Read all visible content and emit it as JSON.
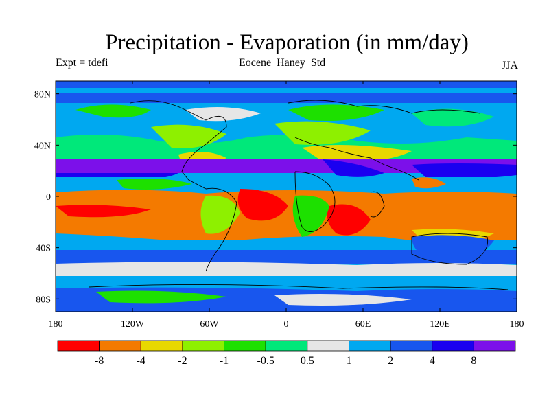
{
  "title": "Precipitation - Evaporation (in mm/day)",
  "experiment": "Expt = tdefi",
  "run_name": "Eocene_Haney_Std",
  "season": "JJA",
  "map": {
    "lat_labels": [
      "80N",
      "40N",
      "0",
      "40S",
      "80S"
    ],
    "lat_values": [
      80,
      40,
      0,
      -40,
      -80
    ],
    "lon_labels": [
      "180",
      "120W",
      "60W",
      "0",
      "60E",
      "120E",
      "180"
    ],
    "lon_values": [
      -180,
      -120,
      -60,
      0,
      60,
      120,
      180
    ],
    "lat_range": [
      -90,
      90
    ],
    "lon_range": [
      -180,
      180
    ]
  },
  "colorbar": {
    "colors": [
      "#ff0000",
      "#f47a00",
      "#e8d800",
      "#8ef000",
      "#1de000",
      "#00e87a",
      "#e6e6e6",
      "#00a8f0",
      "#1856ee",
      "#1a00f0",
      "#7c10ea"
    ],
    "labels": [
      "-8",
      "-4",
      "-2",
      "-1",
      "-0.5",
      "0.5",
      "1",
      "2",
      "4",
      "8"
    ]
  },
  "colors": {
    "dry_strong": "#ff0000",
    "dry": "#f47a00",
    "moderate_dry": "#e8d800",
    "light_dry": "#8ef000",
    "near_zero_dry": "#1de000",
    "near_zero_wet": "#00e87a",
    "neutral": "#e6e6e6",
    "wet": "#00a8f0",
    "wetter": "#1856ee",
    "very_wet": "#1a00f0",
    "extreme_wet": "#7c10ea"
  }
}
